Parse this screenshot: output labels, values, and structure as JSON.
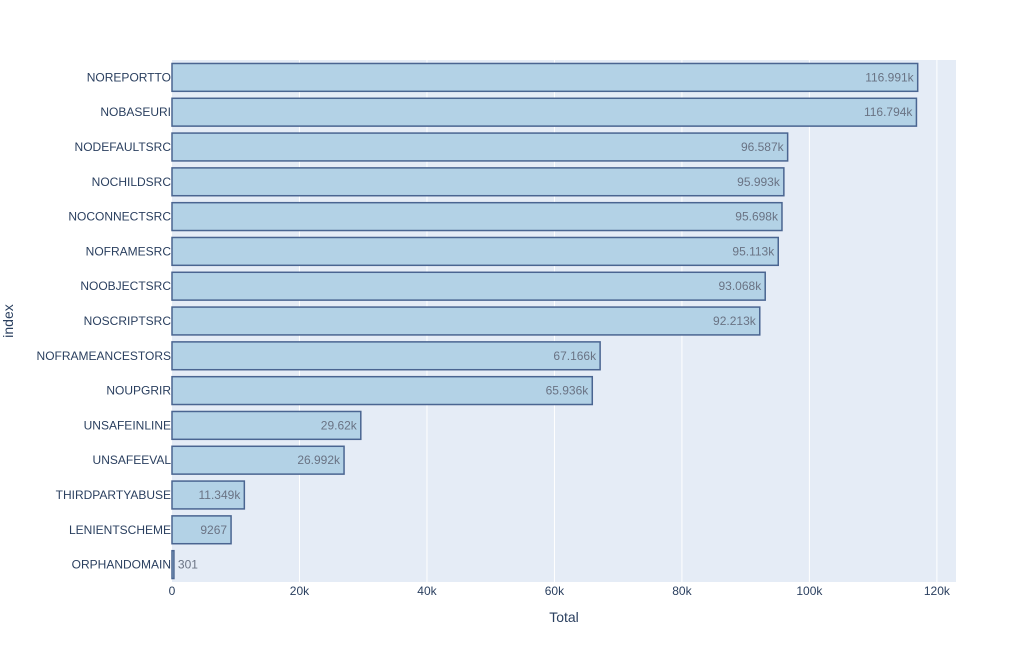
{
  "colors": {
    "plot_bg": "#e5ecf6",
    "grid": "#ffffff",
    "bar_fill": "#b3d2e6",
    "bar_stroke": "#4a6591",
    "text": "#2a3f5f",
    "data_label": "#6a7384"
  },
  "chart_data": {
    "type": "bar",
    "orientation": "horizontal",
    "title": "",
    "xlabel": "Total",
    "ylabel": "index",
    "xlim": [
      0,
      123000
    ],
    "grid": true,
    "xticks": [
      0,
      20000,
      40000,
      60000,
      80000,
      100000,
      120000
    ],
    "xtick_labels": [
      "0",
      "20k",
      "40k",
      "60k",
      "80k",
      "100k",
      "120k"
    ],
    "categories": [
      "NOREPORTTO",
      "NOBASEURI",
      "NODEFAULTSRC",
      "NOCHILDSRC",
      "NOCONNECTSRC",
      "NOFRAMESRC",
      "NOOBJECTSRC",
      "NOSCRIPTSRC",
      "NOFRAMEANCESTORS",
      "NOUPGRIR",
      "UNSAFEINLINE",
      "UNSAFEEVAL",
      "THIRDPARTYABUSE",
      "LENIENTSCHEME",
      "ORPHANDOMAIN"
    ],
    "values": [
      116991,
      116794,
      96587,
      95993,
      95698,
      95113,
      93068,
      92213,
      67166,
      65936,
      29620,
      26992,
      11349,
      9267,
      301
    ],
    "value_labels": [
      "116.991k",
      "116.794k",
      "96.587k",
      "95.993k",
      "95.698k",
      "95.113k",
      "93.068k",
      "92.213k",
      "67.166k",
      "65.936k",
      "29.62k",
      "26.992k",
      "11.349k",
      "9267",
      "301"
    ]
  }
}
